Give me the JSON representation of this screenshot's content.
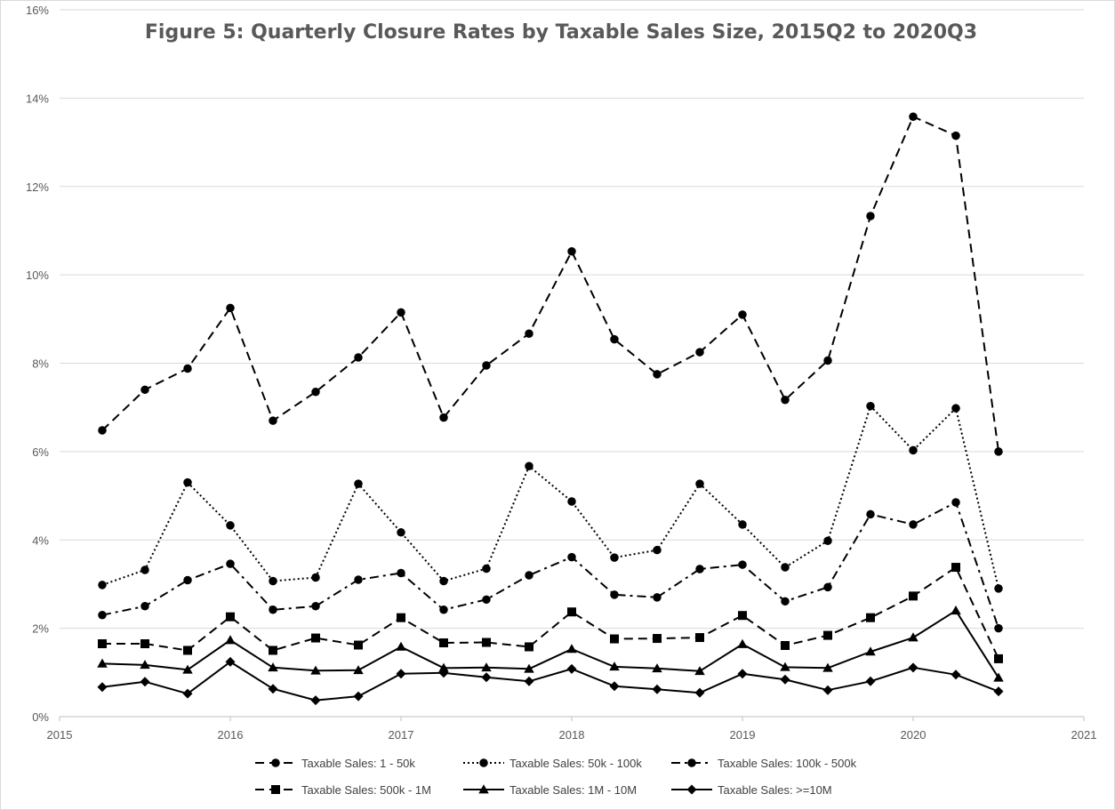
{
  "chart_data": {
    "type": "line",
    "title": "Figure 5: Quarterly Closure Rates by Taxable Sales Size, 2015Q2 to 2020Q3",
    "xlabel": "",
    "ylabel": "",
    "xlim": [
      2015,
      2021
    ],
    "ylim": [
      0,
      16
    ],
    "x_ticks": [
      "2015",
      "2016",
      "2017",
      "2018",
      "2019",
      "2020",
      "2021"
    ],
    "y_ticks": [
      "0%",
      "2%",
      "4%",
      "6%",
      "8%",
      "10%",
      "12%",
      "14%",
      "16%"
    ],
    "grid": "horizontal",
    "legend_position": "bottom",
    "x": [
      2015.25,
      2015.5,
      2015.75,
      2016.0,
      2016.25,
      2016.5,
      2016.75,
      2017.0,
      2017.25,
      2017.5,
      2017.75,
      2018.0,
      2018.25,
      2018.5,
      2018.75,
      2019.0,
      2019.25,
      2019.5,
      2019.75,
      2020.0,
      2020.25,
      2020.5
    ],
    "series": [
      {
        "name": "Taxable Sales: 1 - 50k",
        "dash": "dashed",
        "marker": "circle",
        "values": [
          6.48,
          7.4,
          7.88,
          9.25,
          6.7,
          7.35,
          8.13,
          9.15,
          6.77,
          7.95,
          8.67,
          10.53,
          8.54,
          7.75,
          8.25,
          9.1,
          7.17,
          8.06,
          11.33,
          13.58,
          13.15,
          6.0
        ]
      },
      {
        "name": "Taxable Sales: 50k - 100k",
        "dash": "dotted",
        "marker": "circle",
        "values": [
          2.98,
          3.32,
          5.3,
          4.33,
          3.07,
          3.15,
          5.27,
          4.17,
          3.07,
          3.35,
          5.67,
          4.87,
          3.6,
          3.77,
          5.27,
          4.35,
          3.38,
          3.98,
          7.03,
          6.03,
          6.98,
          2.9
        ]
      },
      {
        "name": "Taxable Sales: 100k - 500k",
        "dash": "dashdot",
        "marker": "circle",
        "values": [
          2.3,
          2.5,
          3.09,
          3.46,
          2.42,
          2.5,
          3.1,
          3.25,
          2.42,
          2.65,
          3.2,
          3.61,
          2.76,
          2.7,
          3.34,
          3.44,
          2.61,
          2.93,
          4.58,
          4.35,
          4.85,
          2.0
        ]
      },
      {
        "name": "Taxable Sales: 500k - 1M",
        "dash": "dashed",
        "marker": "square",
        "values": [
          1.65,
          1.65,
          1.5,
          2.26,
          1.5,
          1.78,
          1.62,
          2.24,
          1.67,
          1.68,
          1.58,
          2.37,
          1.76,
          1.77,
          1.79,
          2.29,
          1.61,
          1.84,
          2.24,
          2.73,
          3.38,
          1.31
        ]
      },
      {
        "name": "Taxable Sales: 1M - 10M",
        "dash": "solid",
        "marker": "triangle",
        "values": [
          1.2,
          1.17,
          1.06,
          1.73,
          1.11,
          1.04,
          1.05,
          1.58,
          1.1,
          1.11,
          1.08,
          1.53,
          1.13,
          1.09,
          1.03,
          1.64,
          1.12,
          1.1,
          1.47,
          1.79,
          2.4,
          0.88
        ]
      },
      {
        "name": "Taxable Sales: >=10M",
        "dash": "solid",
        "marker": "diamond",
        "values": [
          0.67,
          0.79,
          0.52,
          1.24,
          0.63,
          0.37,
          0.46,
          0.97,
          0.99,
          0.89,
          0.8,
          1.08,
          0.69,
          0.62,
          0.54,
          0.97,
          0.84,
          0.6,
          0.8,
          1.11,
          0.95,
          0.57
        ]
      }
    ]
  },
  "colors": {
    "line": "#000000",
    "grid": "#d9d9d9",
    "axis": "#bfbfbf",
    "text": "#595959"
  }
}
